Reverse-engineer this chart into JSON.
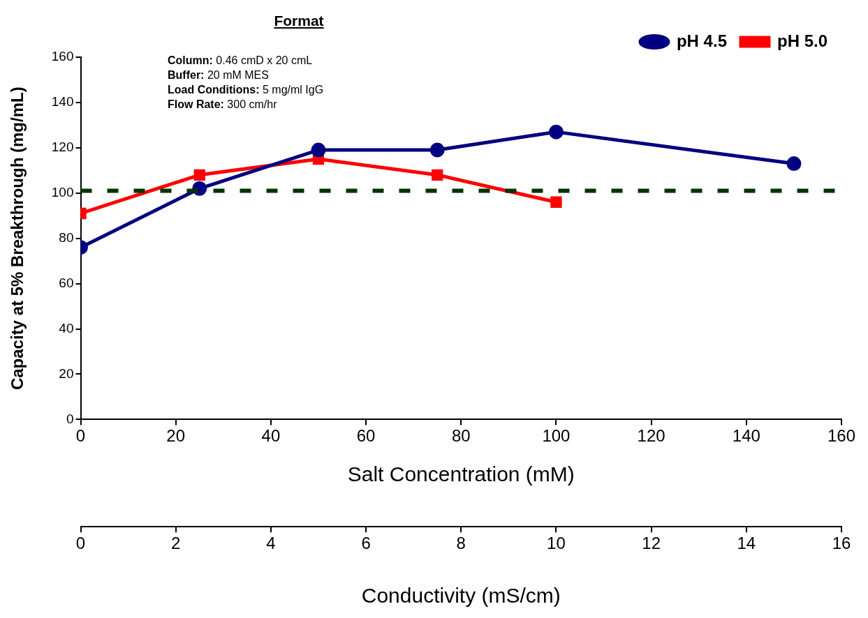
{
  "chart_data": {
    "type": "line",
    "title": "Format",
    "annotations": [
      "Column: 0.46 cmD x 20 cmL",
      "Buffer: 20 mM MES",
      "Load Conditions: 5 mg/ml IgG",
      "Flow Rate: 300 cm/hr"
    ],
    "xlabel": "Salt Concentration (mM)",
    "x2label": "Conductivity (mS/cm)",
    "ylabel": "Capacity at 5% Breakthrough (mg/mL)",
    "series": [
      {
        "name": "pH 4.5",
        "color": "#000080",
        "marker": "circle",
        "x": [
          0,
          25,
          50,
          75,
          100,
          150
        ],
        "values": [
          76,
          102,
          119,
          119,
          127,
          113
        ]
      },
      {
        "name": "pH 5.0",
        "color": "#ff0000",
        "marker": "square",
        "x": [
          0,
          25,
          50,
          75,
          100
        ],
        "values": [
          91,
          108,
          115,
          108,
          96
        ]
      }
    ],
    "xlim": [
      0,
      160
    ],
    "xticks": [
      0,
      20,
      40,
      60,
      80,
      100,
      120,
      140,
      160
    ],
    "x2lim": [
      0,
      16
    ],
    "x2ticks": [
      0,
      2,
      4,
      6,
      8,
      10,
      12,
      14,
      16
    ],
    "ylim": [
      0,
      160
    ],
    "yticks": [
      0,
      20,
      40,
      60,
      80,
      100,
      120,
      140,
      160
    ],
    "ref_lines": [
      {
        "axis": "y",
        "value": 101,
        "color": "#003300",
        "line_style": "dashed"
      }
    ],
    "grid": false,
    "legend": "top right",
    "line_style": "solid"
  }
}
